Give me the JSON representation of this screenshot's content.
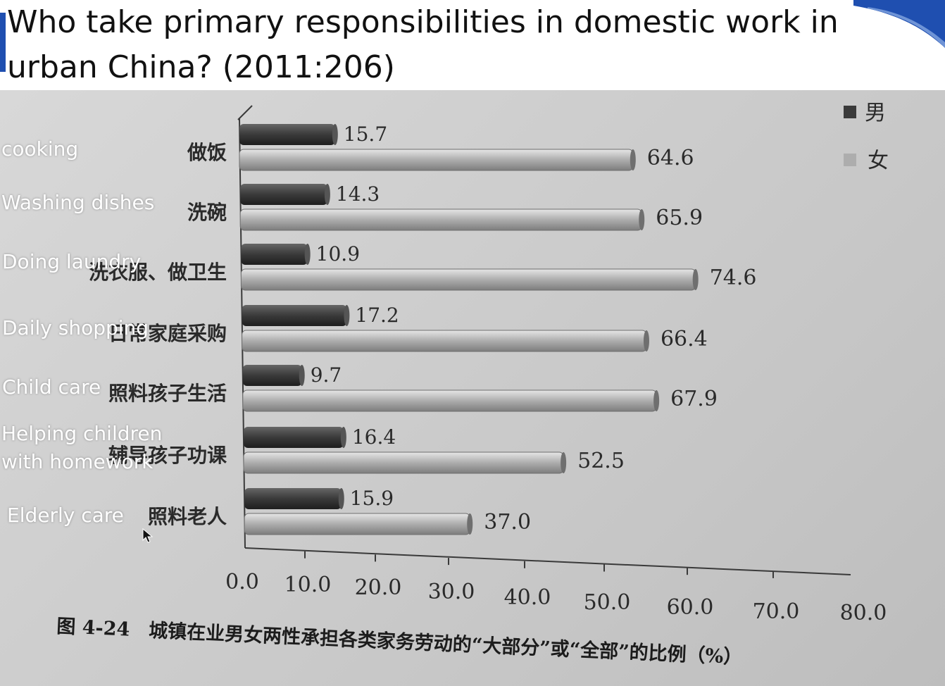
{
  "slide": {
    "title": "Who take primary responsibilities in domestic work in urban China? (2011:206)",
    "accent_color": "#1f4fb0"
  },
  "overlay_labels": [
    "cooking",
    "Washing dishes",
    "Doing laundry",
    "Daily shopping",
    "Child care",
    "Helping children\nwith homework",
    "Elderly care"
  ],
  "chart_data": {
    "type": "bar",
    "orientation": "horizontal",
    "categories": [
      "做饭",
      "洗碗",
      "洗衣服、做卫生",
      "日常家庭采购",
      "照料孩子生活",
      "辅导孩子功课",
      "照料老人"
    ],
    "series": [
      {
        "name": "男",
        "color": "#3a3a3a",
        "values": [
          15.7,
          14.3,
          10.9,
          17.2,
          9.7,
          16.4,
          15.9
        ],
        "labels": [
          "15.7",
          "14.3",
          "10.9",
          "17.2",
          "9.7",
          "16.4",
          "15.9"
        ]
      },
      {
        "name": "女",
        "color": "#adadad",
        "values": [
          64.6,
          65.9,
          74.6,
          66.4,
          67.9,
          52.5,
          37.0
        ],
        "labels": [
          "64.6",
          "65.9",
          "74.6",
          "66.4",
          "67.9",
          "52.5",
          "37.0"
        ]
      }
    ],
    "xlim": [
      0,
      80
    ],
    "x_ticks": [
      "0.0",
      "10.0",
      "20.0",
      "30.0",
      "40.0",
      "50.0",
      "60.0",
      "70.0",
      "80.0"
    ],
    "legend_position": "top-right",
    "caption": "图 4-24　城镇在业男女两性承担各类家务劳动的“大部分”或“全部”的比例（%）"
  }
}
